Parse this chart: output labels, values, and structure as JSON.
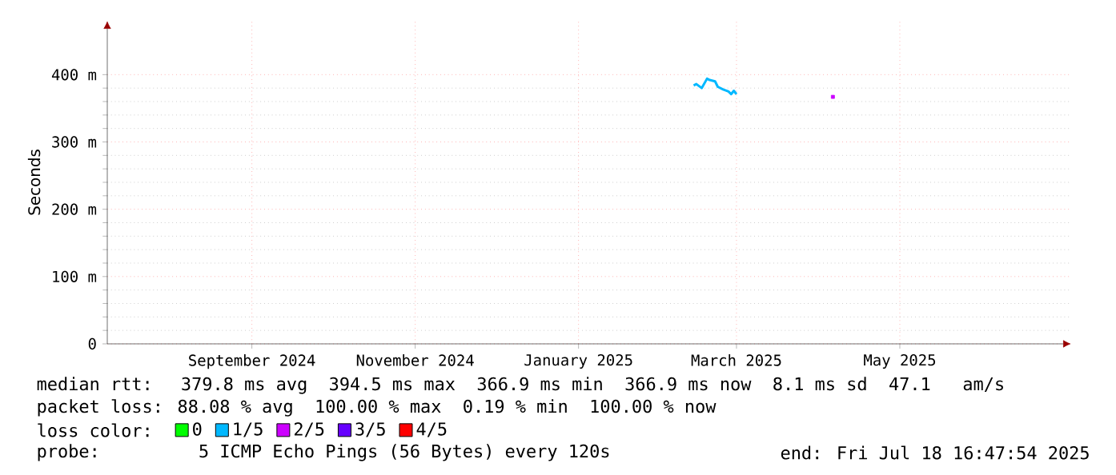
{
  "chart_data": {
    "type": "line",
    "ylabel": "Seconds",
    "legend_title": "loss color:",
    "x": [
      "2025-02-27",
      "2025-02-28",
      "2025-03-02",
      "2025-03-04",
      "2025-03-05",
      "2025-03-07",
      "2025-03-08",
      "2025-03-10",
      "2025-03-12",
      "2025-03-13",
      "2025-03-14",
      "2025-03-15"
    ],
    "series": [
      {
        "name": "0",
        "color": "#00ff00",
        "values": [
          null,
          null,
          null,
          null,
          null,
          null,
          null,
          null,
          null,
          null,
          null,
          null
        ]
      },
      {
        "name": "1/5",
        "color": "#00b8ff",
        "values": [
          384,
          386,
          380,
          394,
          392,
          390,
          382,
          378,
          375,
          371,
          376,
          371
        ]
      },
      {
        "name": "2/5",
        "color": "#cc00ff",
        "type": "scatter",
        "marker": "square",
        "x": [
          "2025-04-20"
        ],
        "values": [
          367
        ]
      },
      {
        "name": "3/5",
        "color": "#6600ff",
        "values": [
          null,
          null,
          null,
          null,
          null,
          null,
          null,
          null,
          null,
          null,
          null,
          null
        ]
      },
      {
        "name": "4/5",
        "color": "#ff0000",
        "values": [
          null,
          null,
          null,
          null,
          null,
          null,
          null,
          null,
          null,
          null,
          null,
          null
        ]
      }
    ],
    "xlim": [
      "2024-07-23",
      "2025-07-18"
    ],
    "xticks": [
      {
        "value": "2024-09-15",
        "label": "September 2024"
      },
      {
        "value": "2024-11-15",
        "label": "November 2024"
      },
      {
        "value": "2025-01-15",
        "label": "January 2025"
      },
      {
        "value": "2025-03-15",
        "label": "March 2025"
      },
      {
        "value": "2025-05-15",
        "label": "May 2025"
      }
    ],
    "ylim": [
      0,
      480
    ],
    "yticks": [
      0,
      {
        "value": 100,
        "label": "100 m"
      },
      {
        "value": 200,
        "label": "200 m"
      },
      {
        "value": 300,
        "label": "300 m"
      },
      {
        "value": 400,
        "label": "400 m"
      }
    ],
    "grid": true,
    "legend": "bottom",
    "marker": "none",
    "line_style": "solid",
    "annotations": [
      "median rtt:  379.8 ms avg  394.5 ms max  366.9 ms min  366.9 ms now  8.1 ms sd  47.1   am/s",
      "packet loss: 88.08 % avg  100.00 % max  0.19 % min  100.00 % now",
      "probe:       5 ICMP Echo Pings (56 Bytes) every 120s",
      "end: Fri Jul 18 16:47:54 2025"
    ]
  }
}
